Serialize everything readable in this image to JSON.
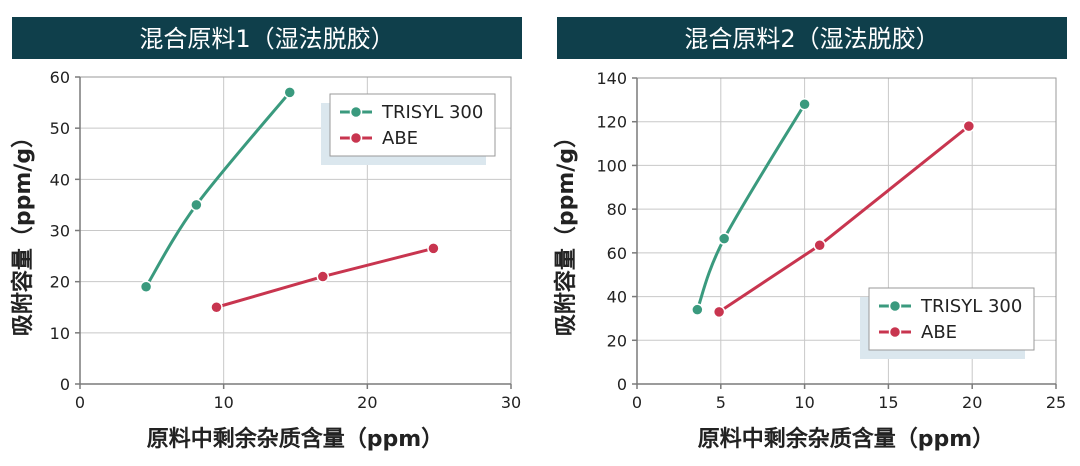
{
  "colors": {
    "header_bg": "#0f3f4b",
    "trisyl": "#3a9a7e",
    "abe": "#c8354f",
    "legend_shadow": "#dbe7ee"
  },
  "chart_data": [
    {
      "type": "line",
      "title": "混合原料1（湿法脱胶）",
      "xlabel": "原料中剩余杂质含量（ppm）",
      "ylabel": "吸附容量（ppm/g）",
      "xlim": [
        0,
        30
      ],
      "ylim": [
        0,
        60
      ],
      "xticks": [
        0,
        10,
        20,
        30
      ],
      "yticks": [
        0,
        10,
        20,
        30,
        40,
        50,
        60
      ],
      "grid": true,
      "legend_position": "top-right",
      "series": [
        {
          "name": "TRISYL 300",
          "color": "#3a9a7e",
          "x": [
            4.6,
            8.1,
            14.6
          ],
          "y": [
            19,
            35,
            57
          ]
        },
        {
          "name": "ABE",
          "color": "#c8354f",
          "x": [
            9.5,
            16.9,
            24.6
          ],
          "y": [
            15,
            21,
            26.5
          ]
        }
      ]
    },
    {
      "type": "line",
      "title": "混合原料2（湿法脱胶）",
      "xlabel": "原料中剩余杂质含量（ppm）",
      "ylabel": "吸附容量（ppm/g）",
      "xlim": [
        0,
        25
      ],
      "ylim": [
        0,
        140
      ],
      "xticks": [
        0,
        5,
        10,
        15,
        20,
        25
      ],
      "yticks": [
        0,
        20,
        40,
        60,
        80,
        100,
        120,
        140
      ],
      "grid": true,
      "legend_position": "bottom-right",
      "series": [
        {
          "name": "TRISYL 300",
          "color": "#3a9a7e",
          "x": [
            3.6,
            5.2,
            10.0
          ],
          "y": [
            34,
            66.5,
            128
          ]
        },
        {
          "name": "ABE",
          "color": "#c8354f",
          "x": [
            4.9,
            10.9,
            19.8
          ],
          "y": [
            33,
            63.5,
            118
          ]
        }
      ]
    }
  ]
}
